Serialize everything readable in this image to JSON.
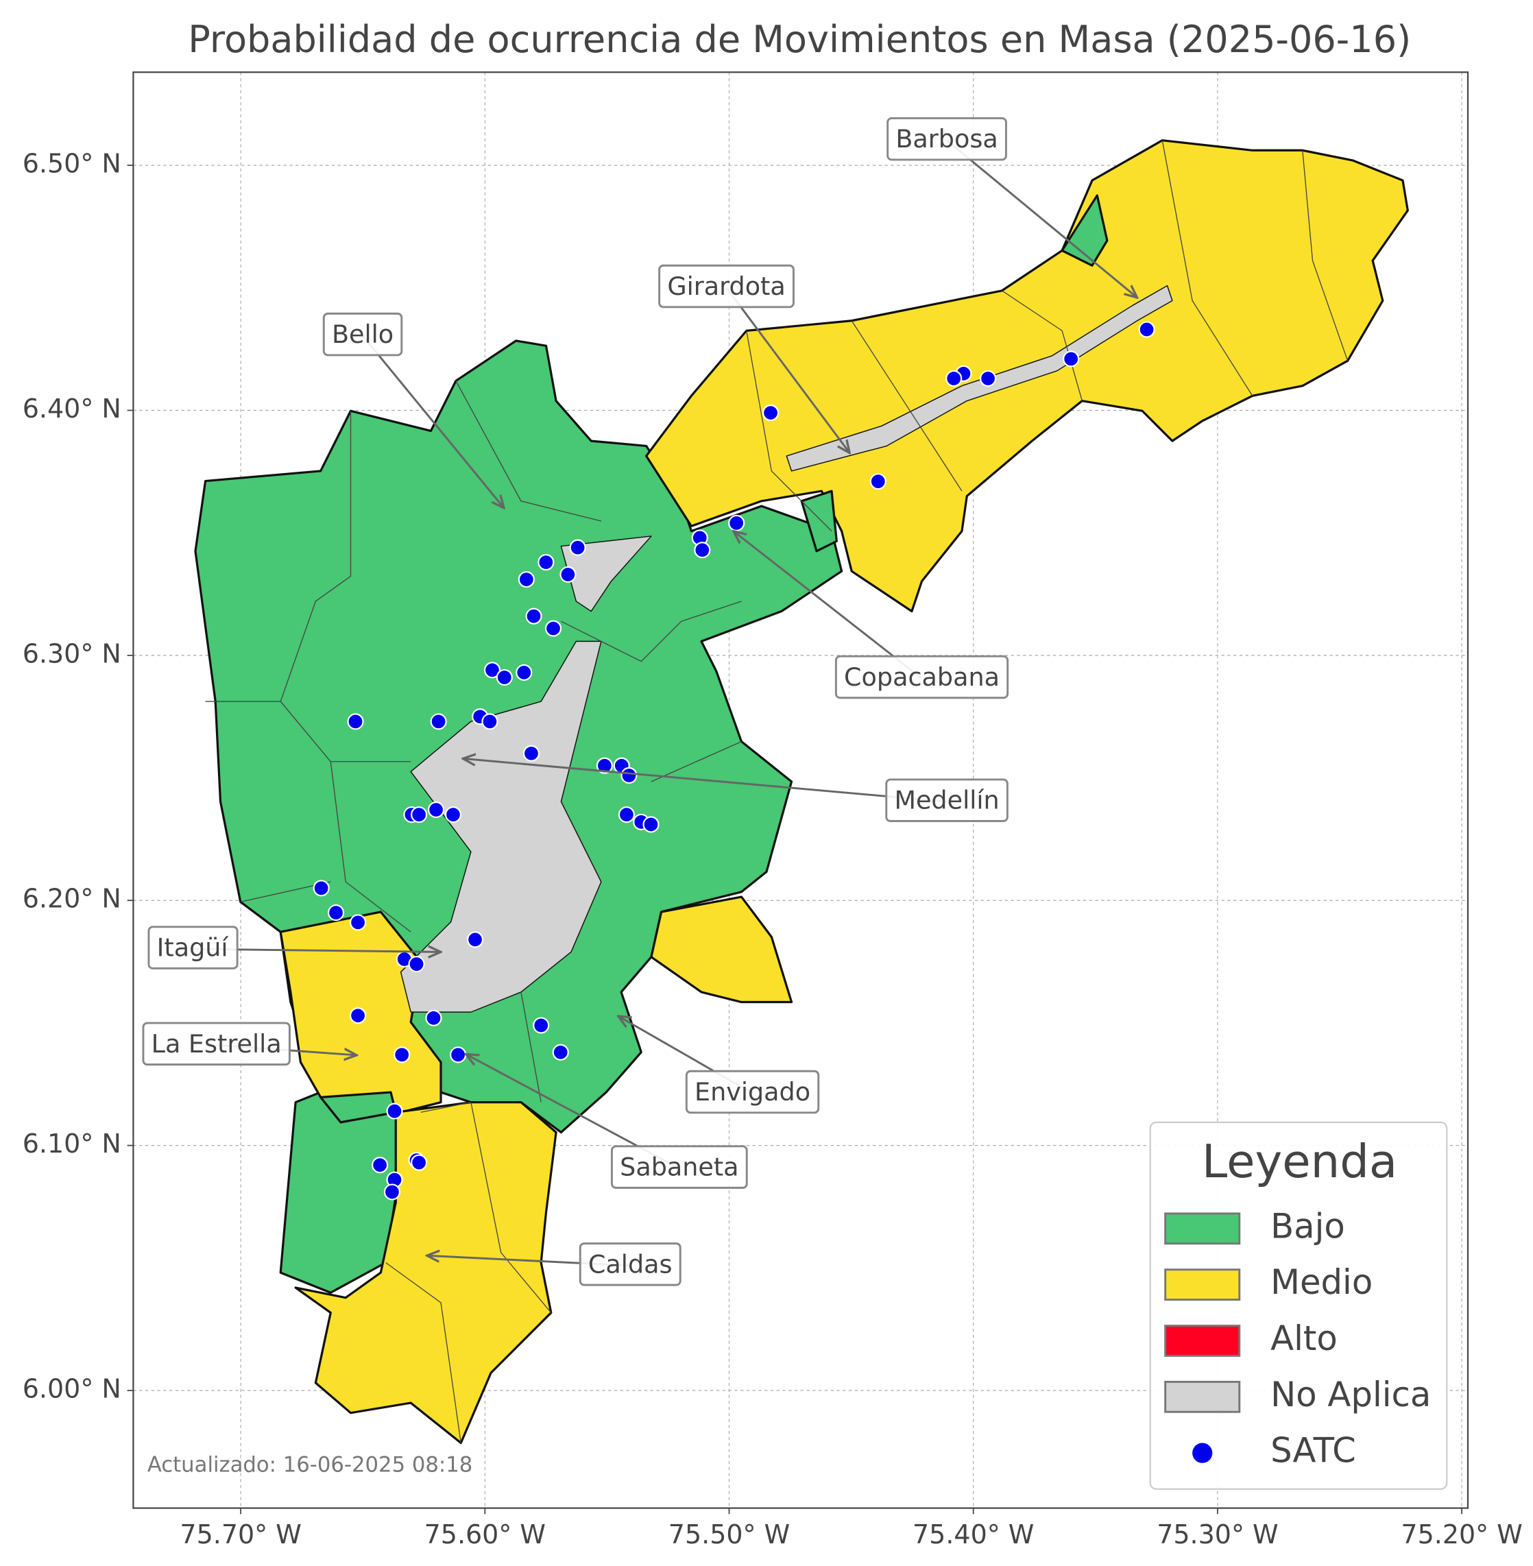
{
  "chart_data": {
    "type": "map",
    "title": "Probabilidad de ocurrencia de Movimientos en Masa (2025-06-16)",
    "xlim": [
      -75.744,
      -75.1975
    ],
    "ylim": [
      5.952,
      6.538
    ],
    "xticks": [
      {
        "value": -75.7,
        "label": "75.70° W"
      },
      {
        "value": -75.6,
        "label": "75.60° W"
      },
      {
        "value": -75.5,
        "label": "75.50° W"
      },
      {
        "value": -75.4,
        "label": "75.40° W"
      },
      {
        "value": -75.3,
        "label": "75.30° W"
      },
      {
        "value": -75.2,
        "label": "75.20° W"
      }
    ],
    "yticks": [
      {
        "value": 6.0,
        "label": "6.00° N"
      },
      {
        "value": 6.1,
        "label": "6.10° N"
      },
      {
        "value": 6.2,
        "label": "6.20° N"
      },
      {
        "value": 6.3,
        "label": "6.30° N"
      },
      {
        "value": 6.4,
        "label": "6.40° N"
      },
      {
        "value": 6.5,
        "label": "6.50° N"
      }
    ],
    "grid": true,
    "levels": [
      {
        "name": "Bajo",
        "color": "#48c774"
      },
      {
        "name": "Medio",
        "color": "#fae02a"
      },
      {
        "name": "Alto",
        "color": "#ff0022"
      },
      {
        "name": "No Aplica",
        "color": "#d3d3d3"
      }
    ],
    "series": [
      {
        "name": "SATC",
        "color": "#0000ee",
        "x": [
          -75.329,
          -75.36,
          -75.394,
          -75.404,
          -75.408,
          -75.483,
          -75.439,
          -75.497,
          -75.512,
          -75.511,
          -75.562,
          -75.575,
          -75.566,
          -75.583,
          -75.58,
          -75.572,
          -75.597,
          -75.592,
          -75.584,
          -75.653,
          -75.619,
          -75.602,
          -75.598,
          -75.581,
          -75.551,
          -75.544,
          -75.541,
          -75.542,
          -75.536,
          -75.532,
          -75.62,
          -75.613,
          -75.63,
          -75.627,
          -75.667,
          -75.661,
          -75.652,
          -75.604,
          -75.633,
          -75.628,
          -75.652,
          -75.621,
          -75.577,
          -75.569,
          -75.634,
          -75.611,
          -75.637,
          -75.643,
          -75.628,
          -75.627,
          -75.637,
          -75.638
        ],
        "y": [
          6.433,
          6.421,
          6.413,
          6.415,
          6.413,
          6.399,
          6.371,
          6.354,
          6.348,
          6.343,
          6.344,
          6.338,
          6.333,
          6.331,
          6.316,
          6.311,
          6.294,
          6.291,
          6.293,
          6.273,
          6.273,
          6.275,
          6.273,
          6.26,
          6.255,
          6.255,
          6.251,
          6.235,
          6.232,
          6.231,
          6.237,
          6.235,
          6.235,
          6.235,
          6.205,
          6.195,
          6.191,
          6.184,
          6.176,
          6.174,
          6.153,
          6.152,
          6.149,
          6.138,
          6.137,
          6.137,
          6.114,
          6.092,
          6.094,
          6.093,
          6.086,
          6.081
        ]
      }
    ],
    "annotations": [
      "Barbosa",
      "Girardota",
      "Bello",
      "Copacabana",
      "Medellín",
      "Itagüí",
      "La Estrella",
      "Envigado",
      "Sabaneta",
      "Caldas"
    ],
    "legend_title": "Leyenda",
    "footnote": "Actualizado: 16-06-2025 08:18"
  }
}
